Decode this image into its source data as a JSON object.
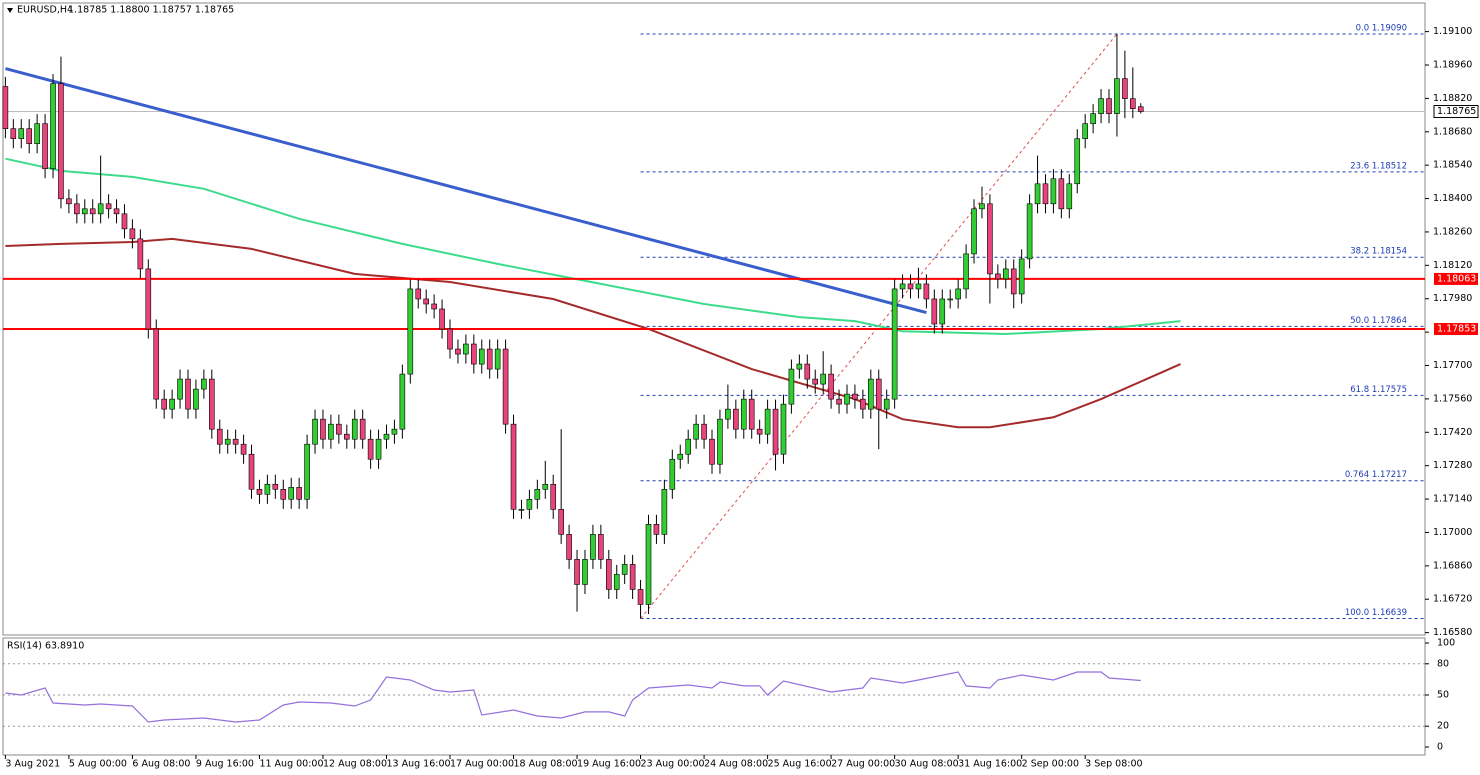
{
  "chart_data": {
    "type": "candlestick",
    "title": "EURUSD,H4",
    "quote": "1.18785 1.18800 1.18757 1.18765",
    "xlim": [
      -0.3,
      178.8
    ],
    "xticks": [
      {
        "value": 0,
        "label": "3 Aug 2021"
      },
      {
        "value": 8,
        "label": "5 Aug 00:00"
      },
      {
        "value": 16,
        "label": "6 Aug 08:00"
      },
      {
        "value": 24,
        "label": "9 Aug 16:00"
      },
      {
        "value": 32,
        "label": "11 Aug 00:00"
      },
      {
        "value": 40,
        "label": "12 Aug 08:00"
      },
      {
        "value": 48,
        "label": "13 Aug 16:00"
      },
      {
        "value": 56,
        "label": "17 Aug 00:00"
      },
      {
        "value": 64,
        "label": "18 Aug 08:00"
      },
      {
        "value": 72,
        "label": "19 Aug 16:00"
      },
      {
        "value": 80,
        "label": "23 Aug 00:00"
      },
      {
        "value": 88,
        "label": "24 Aug 08:00"
      },
      {
        "value": 96,
        "label": "25 Aug 16:00"
      },
      {
        "value": 104,
        "label": "27 Aug 00:00"
      },
      {
        "value": 112,
        "label": "30 Aug 08:00"
      },
      {
        "value": 120,
        "label": "31 Aug 16:00"
      },
      {
        "value": 128,
        "label": "2 Sep 00:00"
      },
      {
        "value": 136,
        "label": "3 Sep 08:00"
      }
    ],
    "ylim": [
      1.1657,
      1.1922
    ],
    "yticks": [
      {
        "value": 1.191,
        "label": "1.19100"
      },
      {
        "value": 1.1896,
        "label": "1.18960"
      },
      {
        "value": 1.1882,
        "label": "1.18820"
      },
      {
        "value": 1.1868,
        "label": "1.18680"
      },
      {
        "value": 1.1854,
        "label": "1.18540"
      },
      {
        "value": 1.184,
        "label": "1.18400"
      },
      {
        "value": 1.1826,
        "label": "1.18260"
      },
      {
        "value": 1.1812,
        "label": "1.18120"
      },
      {
        "value": 1.1798,
        "label": "1.17980"
      },
      {
        "value": 1.1784,
        "label": "1.17840"
      },
      {
        "value": 1.177,
        "label": "1.17700"
      },
      {
        "value": 1.1756,
        "label": "1.17560"
      },
      {
        "value": 1.1742,
        "label": "1.17420"
      },
      {
        "value": 1.1728,
        "label": "1.17280"
      },
      {
        "value": 1.1714,
        "label": "1.17140"
      },
      {
        "value": 1.17,
        "label": "1.17000"
      },
      {
        "value": 1.1686,
        "label": "1.16860"
      },
      {
        "value": 1.1672,
        "label": "1.16720"
      },
      {
        "value": 1.1658,
        "label": "1.16580"
      }
    ],
    "up_color": "#32cd32",
    "down_color": "#e8437a",
    "candles": [
      [
        1.1887,
        1.1891,
        1.18653,
        1.18693
      ],
      [
        1.18693,
        1.18733,
        1.18611,
        1.18651
      ],
      [
        1.18651,
        1.18733,
        1.18611,
        1.18693
      ],
      [
        1.18693,
        1.18733,
        1.1859,
        1.1863
      ],
      [
        1.1863,
        1.18754,
        1.1859,
        1.18714
      ],
      [
        1.18714,
        1.18754,
        1.18485,
        1.18525
      ],
      [
        1.18525,
        1.18922,
        1.18485,
        1.18882
      ],
      [
        1.18882,
        1.18995,
        1.18359,
        1.18399
      ],
      [
        1.18399,
        1.18439,
        1.18338,
        1.18378
      ],
      [
        1.18378,
        1.18418,
        1.18296,
        1.18336
      ],
      [
        1.18336,
        1.18397,
        1.18296,
        1.18357
      ],
      [
        1.18357,
        1.18397,
        1.18296,
        1.18336
      ],
      [
        1.18336,
        1.1858,
        1.18296,
        1.18378
      ],
      [
        1.18378,
        1.18418,
        1.18317,
        1.18357
      ],
      [
        1.18357,
        1.18397,
        1.18296,
        1.18336
      ],
      [
        1.18336,
        1.18376,
        1.18233,
        1.18273
      ],
      [
        1.18273,
        1.18313,
        1.18191,
        1.18231
      ],
      [
        1.18231,
        1.18271,
        1.18065,
        1.18105
      ],
      [
        1.18105,
        1.18145,
        1.17813,
        1.17853
      ],
      [
        1.17853,
        1.17893,
        1.17519,
        1.17559
      ],
      [
        1.17559,
        1.17599,
        1.17477,
        1.17517
      ],
      [
        1.17517,
        1.17599,
        1.17477,
        1.17559
      ],
      [
        1.17559,
        1.17683,
        1.17519,
        1.17643
      ],
      [
        1.17643,
        1.17683,
        1.17477,
        1.17517
      ],
      [
        1.17517,
        1.17641,
        1.17477,
        1.17601
      ],
      [
        1.17601,
        1.17683,
        1.17561,
        1.17643
      ],
      [
        1.17643,
        1.17683,
        1.17393,
        1.17433
      ],
      [
        1.17433,
        1.17473,
        1.1733,
        1.1737
      ],
      [
        1.1737,
        1.17431,
        1.1733,
        1.17391
      ],
      [
        1.17391,
        1.17431,
        1.1733,
        1.1737
      ],
      [
        1.1737,
        1.1741,
        1.17288,
        1.17328
      ],
      [
        1.17328,
        1.17368,
        1.17141,
        1.17181
      ],
      [
        1.17181,
        1.17221,
        1.1712,
        1.1716
      ],
      [
        1.1716,
        1.17242,
        1.1712,
        1.17202
      ],
      [
        1.17202,
        1.17242,
        1.17141,
        1.17181
      ],
      [
        1.17181,
        1.17221,
        1.17099,
        1.17139
      ],
      [
        1.17139,
        1.17229,
        1.17099,
        1.17189
      ],
      [
        1.17189,
        1.17229,
        1.17099,
        1.17139
      ],
      [
        1.17139,
        1.1741,
        1.17099,
        1.1737
      ],
      [
        1.1737,
        1.17515,
        1.1733,
        1.17475
      ],
      [
        1.17475,
        1.17515,
        1.17351,
        1.17391
      ],
      [
        1.17391,
        1.17494,
        1.17351,
        1.17454
      ],
      [
        1.17454,
        1.17494,
        1.17372,
        1.17412
      ],
      [
        1.17412,
        1.17452,
        1.17351,
        1.17391
      ],
      [
        1.17391,
        1.17515,
        1.17351,
        1.17475
      ],
      [
        1.17475,
        1.17515,
        1.17351,
        1.17391
      ],
      [
        1.17391,
        1.17431,
        1.17267,
        1.17307
      ],
      [
        1.17307,
        1.17431,
        1.17267,
        1.17391
      ],
      [
        1.17391,
        1.17452,
        1.17351,
        1.17412
      ],
      [
        1.17412,
        1.17473,
        1.17372,
        1.17433
      ],
      [
        1.17433,
        1.17704,
        1.17393,
        1.17664
      ],
      [
        1.17664,
        1.18061,
        1.17624,
        1.18021
      ],
      [
        1.18021,
        1.18061,
        1.17939,
        1.17979
      ],
      [
        1.17979,
        1.18019,
        1.17918,
        1.17958
      ],
      [
        1.17958,
        1.17998,
        1.17897,
        1.17937
      ],
      [
        1.17937,
        1.17977,
        1.17813,
        1.17853
      ],
      [
        1.17853,
        1.17893,
        1.17729,
        1.17769
      ],
      [
        1.17769,
        1.17809,
        1.17708,
        1.17748
      ],
      [
        1.17748,
        1.1783,
        1.17708,
        1.1779
      ],
      [
        1.1779,
        1.1783,
        1.17666,
        1.17706
      ],
      [
        1.17706,
        1.17809,
        1.17666,
        1.17769
      ],
      [
        1.17769,
        1.17809,
        1.17645,
        1.17685
      ],
      [
        1.17685,
        1.17809,
        1.17645,
        1.17769
      ],
      [
        1.17769,
        1.17809,
        1.17414,
        1.17454
      ],
      [
        1.17454,
        1.17494,
        1.17057,
        1.17097
      ],
      [
        1.17097,
        1.17137,
        1.17057,
        1.17097
      ],
      [
        1.17097,
        1.17179,
        1.17057,
        1.17139
      ],
      [
        1.17139,
        1.17221,
        1.17099,
        1.17181
      ],
      [
        1.17181,
        1.173,
        1.17141,
        1.17202
      ],
      [
        1.17202,
        1.17242,
        1.17057,
        1.17097
      ],
      [
        1.17097,
        1.17433,
        1.16952,
        1.16992
      ],
      [
        1.16992,
        1.17032,
        1.16847,
        1.16887
      ],
      [
        1.16887,
        1.16927,
        1.16668,
        1.16782
      ],
      [
        1.16782,
        1.16927,
        1.16742,
        1.16887
      ],
      [
        1.16887,
        1.17032,
        1.16847,
        1.16992
      ],
      [
        1.16992,
        1.17032,
        1.16847,
        1.16887
      ],
      [
        1.16887,
        1.16927,
        1.16721,
        1.16761
      ],
      [
        1.16761,
        1.16864,
        1.16721,
        1.16824
      ],
      [
        1.16824,
        1.16906,
        1.16784,
        1.16866
      ],
      [
        1.16866,
        1.16906,
        1.16721,
        1.16761
      ],
      [
        1.16761,
        1.16801,
        1.16639,
        1.16698
      ],
      [
        1.16698,
        1.17074,
        1.16658,
        1.17034
      ],
      [
        1.17034,
        1.17074,
        1.16952,
        1.16992
      ],
      [
        1.16992,
        1.17221,
        1.16952,
        1.17181
      ],
      [
        1.17181,
        1.17347,
        1.17141,
        1.17307
      ],
      [
        1.17307,
        1.17368,
        1.17267,
        1.17328
      ],
      [
        1.17328,
        1.17431,
        1.17288,
        1.17391
      ],
      [
        1.17391,
        1.17494,
        1.17351,
        1.17454
      ],
      [
        1.17454,
        1.17494,
        1.17351,
        1.17391
      ],
      [
        1.17391,
        1.17431,
        1.17246,
        1.17286
      ],
      [
        1.17286,
        1.17515,
        1.17246,
        1.17475
      ],
      [
        1.17475,
        1.1762,
        1.17435,
        1.17517
      ],
      [
        1.17517,
        1.17557,
        1.17393,
        1.17433
      ],
      [
        1.17433,
        1.17599,
        1.17393,
        1.17559
      ],
      [
        1.17559,
        1.17599,
        1.17393,
        1.17433
      ],
      [
        1.17433,
        1.17473,
        1.17372,
        1.17412
      ],
      [
        1.17412,
        1.17557,
        1.17372,
        1.17517
      ],
      [
        1.17517,
        1.17557,
        1.1726,
        1.17328
      ],
      [
        1.17328,
        1.17578,
        1.17288,
        1.17538
      ],
      [
        1.17538,
        1.17725,
        1.17498,
        1.17685
      ],
      [
        1.17685,
        1.17746,
        1.17645,
        1.17706
      ],
      [
        1.17706,
        1.17746,
        1.17603,
        1.17643
      ],
      [
        1.17643,
        1.17683,
        1.17582,
        1.17622
      ],
      [
        1.17622,
        1.1776,
        1.17582,
        1.17664
      ],
      [
        1.17664,
        1.17704,
        1.17519,
        1.17559
      ],
      [
        1.17559,
        1.17599,
        1.17498,
        1.17538
      ],
      [
        1.17538,
        1.1762,
        1.17498,
        1.1758
      ],
      [
        1.1758,
        1.1762,
        1.17519,
        1.17559
      ],
      [
        1.17559,
        1.17599,
        1.17477,
        1.17517
      ],
      [
        1.17517,
        1.17683,
        1.17477,
        1.17643
      ],
      [
        1.17643,
        1.17683,
        1.17349,
        1.17517
      ],
      [
        1.17517,
        1.17599,
        1.17477,
        1.17559
      ],
      [
        1.17559,
        1.18061,
        1.17519,
        1.18021
      ],
      [
        1.18021,
        1.18082,
        1.17981,
        1.18042
      ],
      [
        1.18042,
        1.18082,
        1.17981,
        1.18021
      ],
      [
        1.18021,
        1.1811,
        1.17981,
        1.18042
      ],
      [
        1.18042,
        1.18082,
        1.17939,
        1.17979
      ],
      [
        1.17979,
        1.18019,
        1.17834,
        1.17874
      ],
      [
        1.17874,
        1.18019,
        1.17834,
        1.17979
      ],
      [
        1.17979,
        1.18019,
        1.17939,
        1.17979
      ],
      [
        1.17979,
        1.18061,
        1.17939,
        1.18021
      ],
      [
        1.18021,
        1.18208,
        1.17981,
        1.18168
      ],
      [
        1.18168,
        1.18397,
        1.18128,
        1.18357
      ],
      [
        1.18357,
        1.1845,
        1.18317,
        1.18378
      ],
      [
        1.18378,
        1.18418,
        1.1796,
        1.18084
      ],
      [
        1.18084,
        1.18124,
        1.18023,
        1.18063
      ],
      [
        1.18063,
        1.18145,
        1.18023,
        1.18105
      ],
      [
        1.18105,
        1.18145,
        1.1794,
        1.18
      ],
      [
        1.18,
        1.18187,
        1.1796,
        1.18147
      ],
      [
        1.18147,
        1.18418,
        1.18107,
        1.18378
      ],
      [
        1.18378,
        1.1858,
        1.18338,
        1.18462
      ],
      [
        1.18462,
        1.18502,
        1.18338,
        1.18378
      ],
      [
        1.18378,
        1.18523,
        1.18338,
        1.18483
      ],
      [
        1.18483,
        1.18523,
        1.18317,
        1.18357
      ],
      [
        1.18357,
        1.18502,
        1.18317,
        1.18462
      ],
      [
        1.18462,
        1.18691,
        1.18422,
        1.18651
      ],
      [
        1.18651,
        1.18754,
        1.18611,
        1.18714
      ],
      [
        1.18714,
        1.18796,
        1.18674,
        1.18756
      ],
      [
        1.18756,
        1.18859,
        1.18716,
        1.18819
      ],
      [
        1.18819,
        1.18859,
        1.18716,
        1.18756
      ],
      [
        1.18756,
        1.1909,
        1.1866,
        1.18903
      ],
      [
        1.18903,
        1.1902,
        1.18737,
        1.18819
      ],
      [
        1.18819,
        1.1895,
        1.18737,
        1.18777
      ],
      [
        1.18785,
        1.188,
        1.18757,
        1.18765
      ]
    ],
    "overlays": [
      {
        "color": "#3cdc8c",
        "width": 2,
        "x": [
          0,
          7,
          16,
          25,
          37,
          50,
          62,
          75,
          88,
          100,
          107,
          113,
          126,
          138,
          148
        ],
        "values": [
          1.18567,
          1.18516,
          1.18491,
          1.18441,
          1.18315,
          1.1821,
          1.18126,
          1.18042,
          1.17958,
          1.17903,
          1.17886,
          1.17844,
          1.17832,
          1.17853,
          1.17886
        ]
      },
      {
        "color": "#a52a2a",
        "width": 2,
        "x": [
          0,
          7,
          16,
          21,
          31,
          44,
          56,
          69,
          81,
          94,
          107,
          113,
          120,
          124,
          132,
          138,
          148
        ],
        "values": [
          1.18201,
          1.1821,
          1.18218,
          1.18231,
          1.18189,
          1.18084,
          1.1805,
          1.17979,
          1.17853,
          1.17685,
          1.17559,
          1.17475,
          1.17441,
          1.17441,
          1.17483,
          1.17559,
          1.17706
        ]
      },
      {
        "color": "#3a5fcd",
        "width": 3,
        "x": [
          0,
          116
        ],
        "values": [
          1.18945,
          1.17922
        ]
      },
      {
        "color": "#e05050",
        "width": 1,
        "dash": true,
        "x": [
          80,
          140
        ],
        "values": [
          1.16639,
          1.1909
        ]
      }
    ],
    "fib_start": 80,
    "fib": [
      {
        "label": "0.0 1.19090",
        "value": 1.1909
      },
      {
        "label": "23.6 1.18512",
        "value": 1.18512
      },
      {
        "label": "38.2 1.18154",
        "value": 1.18154
      },
      {
        "label": "50.0 1.17864",
        "value": 1.17864
      },
      {
        "label": "61.8 1.17575",
        "value": 1.17575
      },
      {
        "label": "0.764 1.17217",
        "value": 1.17217
      },
      {
        "label": "100.0 1.16639",
        "value": 1.16639
      }
    ],
    "hlines": [
      1.18063,
      1.17853
    ],
    "hline_color": "#ff0000",
    "rsi": {
      "title": "RSI(14) 63.8910",
      "color": "#9370db",
      "ylim": [
        -7.7,
        104.8
      ],
      "yticks": [
        100,
        80,
        50,
        20,
        0
      ],
      "levels": [
        80,
        50,
        20
      ],
      "x": [
        0,
        2,
        5,
        6,
        10,
        12,
        16,
        18,
        20,
        25,
        29,
        32,
        35,
        37,
        41,
        44,
        46,
        48,
        51,
        54,
        56,
        59,
        60,
        64,
        67,
        70,
        73,
        76,
        78,
        79,
        81,
        86,
        89,
        90,
        93,
        95,
        96,
        98,
        104,
        108,
        109,
        113,
        115,
        120,
        121,
        124,
        125,
        128,
        132,
        135,
        138,
        139,
        143
      ],
      "values": [
        51.9,
        50.0,
        56.7,
        42.3,
        40.4,
        41.3,
        39.4,
        24.0,
        26.0,
        27.9,
        24.0,
        26.0,
        40.4,
        43.3,
        42.3,
        39.4,
        45.2,
        67.3,
        64.4,
        54.8,
        52.9,
        54.8,
        30.8,
        35.6,
        29.8,
        27.9,
        33.7,
        33.7,
        29.8,
        45.2,
        56.7,
        59.6,
        56.7,
        62.5,
        58.7,
        58.7,
        50.0,
        63.5,
        52.9,
        56.7,
        66.3,
        61.5,
        64.4,
        72.1,
        58.7,
        56.7,
        64.4,
        69.2,
        64.4,
        72.1,
        72.1,
        66.3,
        63.891
      ]
    }
  }
}
